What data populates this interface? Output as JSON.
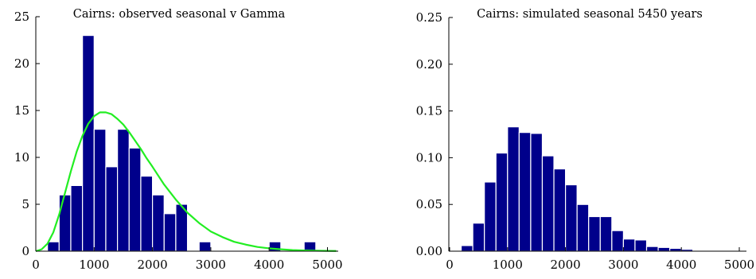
{
  "colors": {
    "bar": "#00008b",
    "curve": "#22ee22"
  },
  "chart_data": [
    {
      "type": "bar",
      "title": "Cairns: observed seasonal v Gamma",
      "xlabel": "",
      "ylabel": "",
      "xlim": [
        0,
        5200
      ],
      "ylim": [
        0,
        25
      ],
      "xticks": [
        0,
        1000,
        2000,
        3000,
        4000,
        5000
      ],
      "xtick_labels": [
        "0",
        "1000",
        "2000",
        "3000",
        "4000",
        "5000"
      ],
      "yticks": [
        0,
        5,
        10,
        15,
        20,
        25
      ],
      "ytick_labels": [
        "0",
        "5",
        "10",
        "15",
        "20",
        "25"
      ],
      "bin_width": 200,
      "bins": [
        {
          "x": 100,
          "value": 0
        },
        {
          "x": 300,
          "value": 1
        },
        {
          "x": 500,
          "value": 6
        },
        {
          "x": 700,
          "value": 7
        },
        {
          "x": 900,
          "value": 23
        },
        {
          "x": 1100,
          "value": 13
        },
        {
          "x": 1300,
          "value": 9
        },
        {
          "x": 1500,
          "value": 13
        },
        {
          "x": 1700,
          "value": 11
        },
        {
          "x": 1900,
          "value": 8
        },
        {
          "x": 2100,
          "value": 6
        },
        {
          "x": 2300,
          "value": 4
        },
        {
          "x": 2500,
          "value": 5
        },
        {
          "x": 2700,
          "value": 0
        },
        {
          "x": 2900,
          "value": 1
        },
        {
          "x": 3100,
          "value": 0
        },
        {
          "x": 3300,
          "value": 0
        },
        {
          "x": 3500,
          "value": 0
        },
        {
          "x": 3700,
          "value": 0
        },
        {
          "x": 3900,
          "value": 0
        },
        {
          "x": 4100,
          "value": 1
        },
        {
          "x": 4300,
          "value": 0
        },
        {
          "x": 4500,
          "value": 0
        },
        {
          "x": 4700,
          "value": 1
        }
      ],
      "curve": {
        "x": [
          0,
          100,
          200,
          300,
          400,
          500,
          600,
          700,
          800,
          900,
          1000,
          1100,
          1200,
          1300,
          1400,
          1500,
          1600,
          1700,
          1800,
          1900,
          2000,
          2200,
          2400,
          2600,
          2800,
          3000,
          3200,
          3400,
          3600,
          3800,
          4000,
          4200,
          4400,
          4600,
          4800,
          5000,
          5150
        ],
        "y": [
          0,
          0.2,
          0.8,
          2.0,
          3.9,
          6.2,
          8.5,
          10.6,
          12.3,
          13.6,
          14.4,
          14.8,
          14.8,
          14.6,
          14.1,
          13.5,
          12.7,
          11.8,
          10.9,
          9.9,
          9.0,
          7.1,
          5.5,
          4.1,
          3.0,
          2.1,
          1.5,
          1.0,
          0.7,
          0.45,
          0.3,
          0.2,
          0.12,
          0.08,
          0.05,
          0.03,
          0.02
        ]
      }
    },
    {
      "type": "bar",
      "title": "Cairns: simulated seasonal 5450 years",
      "xlabel": "",
      "ylabel": "",
      "xlim": [
        0,
        5200
      ],
      "ylim": [
        0,
        0.25
      ],
      "xticks": [
        0,
        1000,
        2000,
        3000,
        4000,
        5000
      ],
      "xtick_labels": [
        "0",
        "1000",
        "2000",
        "3000",
        "4000",
        "5000"
      ],
      "yticks": [
        0,
        0.05,
        0.1,
        0.15,
        0.2,
        0.25
      ],
      "ytick_labels": [
        "0.00",
        "0.05",
        "0.10",
        "0.15",
        "0.20",
        "0.25"
      ],
      "bin_width": 200,
      "bins": [
        {
          "x": 300,
          "value": 0.006
        },
        {
          "x": 500,
          "value": 0.03
        },
        {
          "x": 700,
          "value": 0.074
        },
        {
          "x": 900,
          "value": 0.105
        },
        {
          "x": 1100,
          "value": 0.133
        },
        {
          "x": 1300,
          "value": 0.127
        },
        {
          "x": 1500,
          "value": 0.126
        },
        {
          "x": 1700,
          "value": 0.102
        },
        {
          "x": 1900,
          "value": 0.088
        },
        {
          "x": 2100,
          "value": 0.071
        },
        {
          "x": 2300,
          "value": 0.05
        },
        {
          "x": 2500,
          "value": 0.037
        },
        {
          "x": 2700,
          "value": 0.037
        },
        {
          "x": 2900,
          "value": 0.022
        },
        {
          "x": 3100,
          "value": 0.013
        },
        {
          "x": 3300,
          "value": 0.012
        },
        {
          "x": 3500,
          "value": 0.005
        },
        {
          "x": 3700,
          "value": 0.004
        },
        {
          "x": 3900,
          "value": 0.003
        },
        {
          "x": 4100,
          "value": 0.002
        },
        {
          "x": 4300,
          "value": 0.001
        },
        {
          "x": 4500,
          "value": 0.001
        },
        {
          "x": 4700,
          "value": 0.0005
        }
      ]
    }
  ]
}
